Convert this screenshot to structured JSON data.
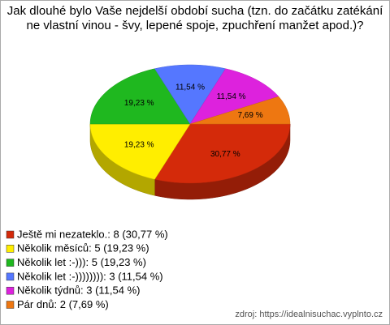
{
  "chart_data": {
    "type": "pie",
    "title": "Jak dlouhé bylo Vaše nejdelší období sucha (tzn. do začátku zatékání ne vlastní vinou - švy, lepené spoje, zpuchření manžet apod.)?",
    "categories": [
      "Ještě mi nezateklo.",
      "Několik měsíců",
      "Několik let :-)))",
      "Několik let :-))))))))",
      "Několik týdnů",
      "Pár dnů"
    ],
    "values": [
      30.77,
      19.23,
      19.23,
      11.54,
      11.54,
      7.69
    ],
    "value_labels": [
      "30,77 %",
      "19,23 %",
      "19,23 %",
      "11,54 %",
      "11,54 %",
      "7,69 %"
    ],
    "colors": [
      "#d42a0a",
      "#ffee00",
      "#1fb81f",
      "#5577ff",
      "#dd22dd",
      "#ee7711"
    ],
    "legend_labels": [
      "Ještě mi nezateklo.: 8 (30,77 %)",
      "Několik měsíců: 5 (19,23 %)",
      "Několik let :-))): 5 (19,23 %)",
      "Několik let :-)))))))): 3 (11,54 %)",
      "Několik týdnů: 3 (11,54 %)",
      "Pár dnů: 2 (7,69 %)"
    ],
    "source": "zdroj: https://idealnisuchac.vyplnto.cz"
  }
}
